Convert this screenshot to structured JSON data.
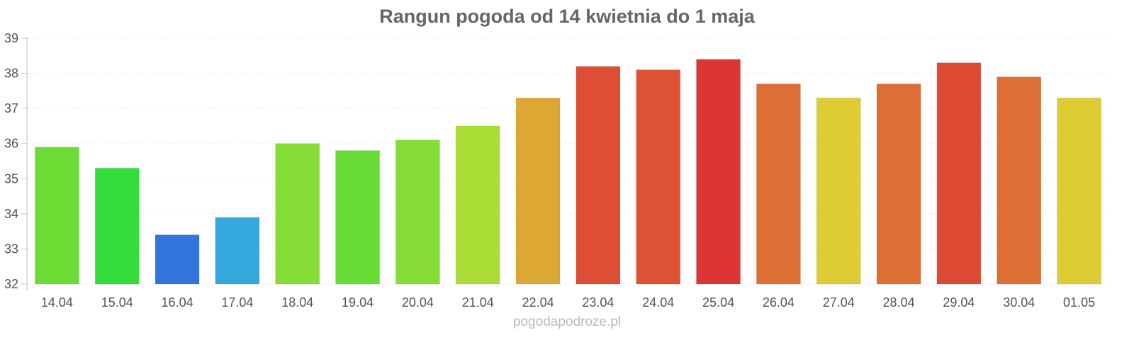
{
  "chart_data": {
    "type": "bar",
    "title": "Rangun pogoda od 14 kwietnia do 1 maja",
    "xlabel": "",
    "ylabel": "",
    "ylim": [
      32,
      39
    ],
    "yticks": [
      "32",
      "33",
      "34",
      "35",
      "36",
      "37",
      "38",
      "39"
    ],
    "grid": true,
    "categories": [
      "14.04",
      "15.04",
      "16.04",
      "17.04",
      "18.04",
      "19.04",
      "20.04",
      "21.04",
      "22.04",
      "23.04",
      "24.04",
      "25.04",
      "26.04",
      "27.04",
      "28.04",
      "29.04",
      "30.04",
      "01.05"
    ],
    "values": [
      35.9,
      35.3,
      33.4,
      33.9,
      36.0,
      35.8,
      36.1,
      36.5,
      37.3,
      38.2,
      38.1,
      38.4,
      37.7,
      37.3,
      37.7,
      38.3,
      37.9,
      37.3
    ],
    "colors": [
      "#6ddd36",
      "#33dd3a",
      "#3474dd",
      "#35a8dd",
      "#86dd36",
      "#67dd36",
      "#86dd36",
      "#aadd36",
      "#dda734",
      "#dd4e34",
      "#dd5234",
      "#dd3534",
      "#dd6e34",
      "#ddcc34",
      "#dd6e34",
      "#dd4a34",
      "#dd6e34",
      "#ddcc34"
    ]
  },
  "credit": "pogodapodroze.pl"
}
